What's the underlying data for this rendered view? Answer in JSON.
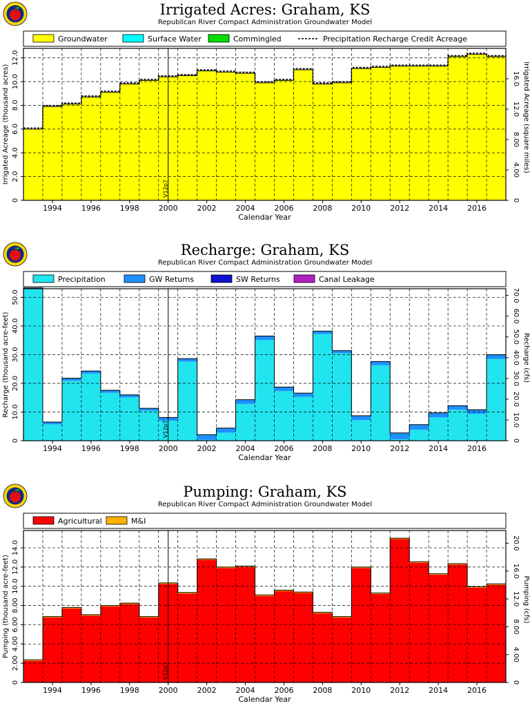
{
  "colors": {
    "groundwater": "#ffff00",
    "surface_water": "#00ffff",
    "commingled": "#00e000",
    "precipitation": "#22e4ee",
    "gw_returns": "#1e90ff",
    "sw_returns": "#1010d0",
    "canal_leakage": "#b020c0",
    "agricultural": "#ff0000",
    "mi": "#ffb000",
    "logo_outer": "#ffd700",
    "logo_inner": "#0a2a8a",
    "logo_apple": "#e01010"
  },
  "logo": {
    "icon": "apple-logo-icon"
  },
  "chart_data": [
    {
      "type": "area",
      "title": "Irrigated Acres: Graham, KS",
      "subtitle": "Republican River Compact Administration Groundwater Model",
      "xlabel": "Calendar Year",
      "ylabel": "Irrigated Acreage (thousand acres)",
      "ylabel_right": "Irrigated Acreage (square miles)",
      "xlim": [
        1993,
        2017
      ],
      "ylim": [
        0,
        12.8
      ],
      "yticks": [
        "0",
        "2.0",
        "4.0",
        "6.0",
        "8.0",
        "10.0",
        "12.0"
      ],
      "yticks_right": [
        "0",
        "4.00",
        "8.00",
        "12.0",
        "16.0"
      ],
      "xticks": [
        "1994",
        "1996",
        "1998",
        "2000",
        "2002",
        "2004",
        "2006",
        "2008",
        "2010",
        "2012",
        "2014",
        "2016"
      ],
      "grid": true,
      "legend_position": "top",
      "annotation": "V12p7",
      "legend": [
        "Groundwater",
        "Surface Water",
        "Commingled",
        "Precipitation Recharge Credit Acreage"
      ],
      "years": [
        1993,
        1994,
        1995,
        1996,
        1997,
        1998,
        1999,
        2000,
        2001,
        2002,
        2003,
        2004,
        2005,
        2006,
        2007,
        2008,
        2009,
        2010,
        2011,
        2012,
        2013,
        2014,
        2015,
        2016,
        2017
      ],
      "series": [
        {
          "name": "Groundwater",
          "values": [
            6.0,
            7.9,
            8.1,
            8.7,
            9.1,
            9.8,
            10.1,
            10.4,
            10.5,
            10.9,
            10.8,
            10.7,
            9.9,
            10.1,
            11.0,
            9.8,
            9.9,
            11.1,
            11.2,
            11.3,
            11.3,
            11.3,
            12.1,
            12.3,
            12.1
          ]
        },
        {
          "name": "Surface Water",
          "values": [
            0,
            0,
            0,
            0,
            0,
            0,
            0,
            0,
            0,
            0,
            0,
            0,
            0,
            0,
            0,
            0,
            0,
            0,
            0,
            0,
            0,
            0,
            0,
            0,
            0
          ]
        },
        {
          "name": "Commingled",
          "values": [
            0,
            0,
            0,
            0,
            0,
            0,
            0,
            0,
            0,
            0,
            0,
            0,
            0,
            0,
            0,
            0,
            0,
            0,
            0,
            0,
            0,
            0,
            0,
            0,
            0
          ]
        },
        {
          "name": "Precipitation Recharge Credit Acreage",
          "values": [
            6.0,
            7.9,
            8.1,
            8.7,
            9.1,
            9.8,
            10.1,
            10.4,
            10.5,
            10.9,
            10.8,
            10.7,
            9.9,
            10.1,
            11.0,
            9.8,
            9.9,
            11.1,
            11.2,
            11.3,
            11.3,
            11.3,
            12.1,
            12.3,
            12.1
          ]
        }
      ]
    },
    {
      "type": "area",
      "title": "Recharge: Graham, KS",
      "subtitle": "Republican River Compact Administration Groundwater Model",
      "xlabel": "Calendar Year",
      "ylabel": "Recharge (thousand acre-feet)",
      "ylabel_right": "Recharge (cfs)",
      "xlim": [
        1993,
        2017
      ],
      "ylim": [
        0,
        53
      ],
      "yticks": [
        "0",
        "10.0",
        "20.0",
        "30.0",
        "40.0",
        "50.0"
      ],
      "yticks_right": [
        "0",
        "10.0",
        "20.0",
        "30.0",
        "40.0",
        "50.0",
        "60.0",
        "70.0"
      ],
      "xticks": [
        "1994",
        "1996",
        "1998",
        "2000",
        "2002",
        "2004",
        "2006",
        "2008",
        "2010",
        "2012",
        "2014",
        "2016"
      ],
      "grid": true,
      "legend_position": "top",
      "annotation": "V12p7",
      "legend": [
        "Precipitation",
        "GW Returns",
        "SW Returns",
        "Canal Leakage"
      ],
      "years": [
        1993,
        1994,
        1995,
        1996,
        1997,
        1998,
        1999,
        2000,
        2001,
        2002,
        2003,
        2004,
        2005,
        2006,
        2007,
        2008,
        2009,
        2010,
        2011,
        2012,
        2013,
        2014,
        2015,
        2016,
        2017
      ],
      "series": [
        {
          "name": "Precipitation",
          "values": [
            52.9,
            5.7,
            20.9,
            23.4,
            16.7,
            15.1,
            10.5,
            7.0,
            27.6,
            0.3,
            2.8,
            12.8,
            35.1,
            17.3,
            15.3,
            37.2,
            30.5,
            7.2,
            26.3,
            0.5,
            3.8,
            8.1,
            10.8,
            9.4,
            28.5
          ]
        },
        {
          "name": "GW Returns",
          "values": [
            0.4,
            0.8,
            0.9,
            0.9,
            0.9,
            0.9,
            0.8,
            1.1,
            1.0,
            1.8,
            1.6,
            1.5,
            1.4,
            1.4,
            1.3,
            1.0,
            0.9,
            1.5,
            1.3,
            2.2,
            1.8,
            1.6,
            1.4,
            1.4,
            1.5
          ]
        },
        {
          "name": "SW Returns",
          "values": [
            0,
            0,
            0,
            0,
            0,
            0,
            0,
            0,
            0,
            0,
            0,
            0,
            0,
            0,
            0,
            0,
            0,
            0,
            0,
            0,
            0,
            0,
            0,
            0,
            0
          ]
        },
        {
          "name": "Canal Leakage",
          "values": [
            0,
            0,
            0,
            0,
            0,
            0,
            0,
            0,
            0,
            0,
            0,
            0,
            0,
            0,
            0,
            0,
            0,
            0,
            0,
            0,
            0,
            0,
            0,
            0,
            0
          ]
        }
      ]
    },
    {
      "type": "area",
      "title": "Pumping: Graham, KS",
      "subtitle": "Republican River Compact Administration Groundwater Model",
      "xlabel": "Calendar Year",
      "ylabel": "Pumping (thousand acre-feet)",
      "ylabel_right": "Pumping (cfs)",
      "xlim": [
        1993,
        2017
      ],
      "ylim": [
        0,
        15.8
      ],
      "yticks": [
        "0",
        "2.00",
        "4.00",
        "6.00",
        "8.00",
        "10.0",
        "12.0",
        "14.0"
      ],
      "yticks_right": [
        "0",
        "4.00",
        "8.00",
        "12.0",
        "16.0",
        "20.0"
      ],
      "xticks": [
        "1994",
        "1996",
        "1998",
        "2000",
        "2002",
        "2004",
        "2006",
        "2008",
        "2010",
        "2012",
        "2014",
        "2016"
      ],
      "grid": true,
      "legend_position": "top",
      "annotation": "V12p7",
      "legend": [
        "Agricultural",
        "M&I"
      ],
      "years": [
        1993,
        1994,
        1995,
        1996,
        1997,
        1998,
        1999,
        2000,
        2001,
        2002,
        2003,
        2004,
        2005,
        2006,
        2007,
        2008,
        2009,
        2010,
        2011,
        2012,
        2013,
        2014,
        2015,
        2016,
        2017
      ],
      "series": [
        {
          "name": "Agricultural",
          "values": [
            2.25,
            6.75,
            7.7,
            6.95,
            7.9,
            8.15,
            6.75,
            10.25,
            9.25,
            12.75,
            11.9,
            12.0,
            9.0,
            9.5,
            9.3,
            7.2,
            6.75,
            11.9,
            9.2,
            14.9,
            12.45,
            11.2,
            12.25,
            9.85,
            10.15
          ]
        },
        {
          "name": "M&I",
          "values": [
            0.1,
            0.1,
            0.1,
            0.1,
            0.1,
            0.1,
            0.1,
            0.1,
            0.1,
            0.1,
            0.1,
            0.1,
            0.1,
            0.1,
            0.1,
            0.1,
            0.1,
            0.1,
            0.1,
            0.1,
            0.1,
            0.1,
            0.1,
            0.1,
            0.1
          ]
        }
      ]
    }
  ]
}
